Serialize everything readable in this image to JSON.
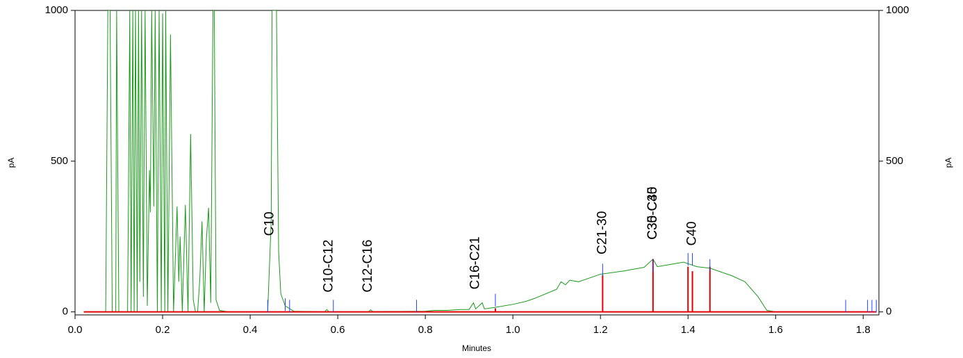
{
  "chart_data": {
    "type": "chromatogram",
    "x_label": "Minutes",
    "y_label": "pA",
    "y2_label": "pA",
    "xlim": [
      0,
      1.836
    ],
    "ylim": [
      -10,
      1000
    ],
    "y2lim": [
      -10,
      1000
    ],
    "xticks": [
      {
        "value": 0,
        "label": "0.0"
      },
      0.2,
      0.4,
      0.6,
      0.8,
      {
        "value": 1,
        "label": "1.0"
      },
      1.2,
      1.4,
      1.6,
      1.8
    ],
    "yticks": [
      0,
      500,
      1000
    ],
    "y2ticks": [
      0,
      500,
      1000
    ],
    "series": [
      {
        "style": "line",
        "color": "#1a9a1a",
        "x": [
          0.02,
          0.07,
          0.075,
          0.08,
          0.085,
          0.093,
          0.095,
          0.1,
          0.12,
          0.125,
          0.128,
          0.132,
          0.135,
          0.138,
          0.142,
          0.145,
          0.148,
          0.152,
          0.156,
          0.16,
          0.165,
          0.17,
          0.172,
          0.175,
          0.18,
          0.183,
          0.188,
          0.192,
          0.197,
          0.2,
          0.205,
          0.207,
          0.212,
          0.218,
          0.225,
          0.233,
          0.237,
          0.24,
          0.245,
          0.252,
          0.258,
          0.264,
          0.27,
          0.275,
          0.28,
          0.285,
          0.29,
          0.295,
          0.3,
          0.305,
          0.31,
          0.315,
          0.318,
          0.322,
          0.33,
          0.35,
          0.44,
          0.448,
          0.45,
          0.46,
          0.465,
          0.47,
          0.48,
          0.5,
          0.57,
          0.575,
          0.58,
          0.67,
          0.675,
          0.68,
          0.8,
          0.82,
          0.85,
          0.88,
          0.9,
          0.91,
          0.915,
          0.93,
          0.935,
          0.96,
          1.0,
          1.03,
          1.05,
          1.1,
          1.11,
          1.12,
          1.13,
          1.15,
          1.2,
          1.25,
          1.3,
          1.32,
          1.33,
          1.37,
          1.39,
          1.42,
          1.45,
          1.5,
          1.53,
          1.56,
          1.58,
          1.6,
          1.83
        ],
        "values": [
          0,
          0,
          1000,
          1000,
          0,
          0,
          1000,
          0,
          0,
          1000,
          0,
          1000,
          0,
          1000,
          0,
          1000,
          100,
          1000,
          50,
          1000,
          20,
          470,
          330,
          1000,
          350,
          1000,
          0,
          1000,
          0,
          990,
          0,
          1000,
          0,
          920,
          0,
          350,
          100,
          250,
          0,
          355,
          0,
          590,
          40,
          0,
          0,
          110,
          300,
          0,
          240,
          345,
          30,
          1000,
          1000,
          40,
          5,
          0,
          0,
          300,
          1000,
          1000,
          200,
          60,
          20,
          2,
          0,
          8,
          0,
          0,
          7,
          1,
          2,
          5,
          5,
          8,
          8,
          30,
          10,
          30,
          10,
          15,
          25,
          35,
          45,
          75,
          100,
          90,
          105,
          100,
          125,
          135,
          148,
          175,
          150,
          160,
          165,
          150,
          145,
          120,
          100,
          50,
          5,
          0,
          0
        ]
      },
      {
        "style": "baseline",
        "color": "#e00000",
        "x": [
          0.02,
          1.83
        ],
        "values": [
          0,
          0
        ]
      },
      {
        "style": "drop",
        "color": "#e00000",
        "x": [
          0.96,
          1.205,
          1.32,
          1.4,
          1.41,
          1.45
        ],
        "values": [
          12,
          122,
          175,
          150,
          135,
          150
        ]
      },
      {
        "style": "tick",
        "color": "#2040ff",
        "x": [
          0.44,
          0.48,
          0.49,
          0.59,
          0.78,
          0.96,
          1.205,
          1.32,
          1.4,
          1.41,
          1.45,
          1.76,
          1.81,
          1.82,
          1.83
        ],
        "values": [
          40,
          45,
          40,
          40,
          40,
          60,
          160,
          175,
          195,
          195,
          175,
          40,
          40,
          40,
          40
        ]
      }
    ],
    "annotations": [
      {
        "text": "C10",
        "x": 0.445
      },
      {
        "text": "C10-C12",
        "x": 0.58
      },
      {
        "text": "C12-C16",
        "x": 0.67
      },
      {
        "text": "C16-C21",
        "x": 0.915
      },
      {
        "text": "C21-30",
        "x": 1.205
      },
      {
        "text": "C30-C35",
        "x": 1.32
      },
      {
        "text": "C35-C40",
        "x": 1.32
      },
      {
        "text": "C40",
        "x": 1.41
      }
    ]
  }
}
